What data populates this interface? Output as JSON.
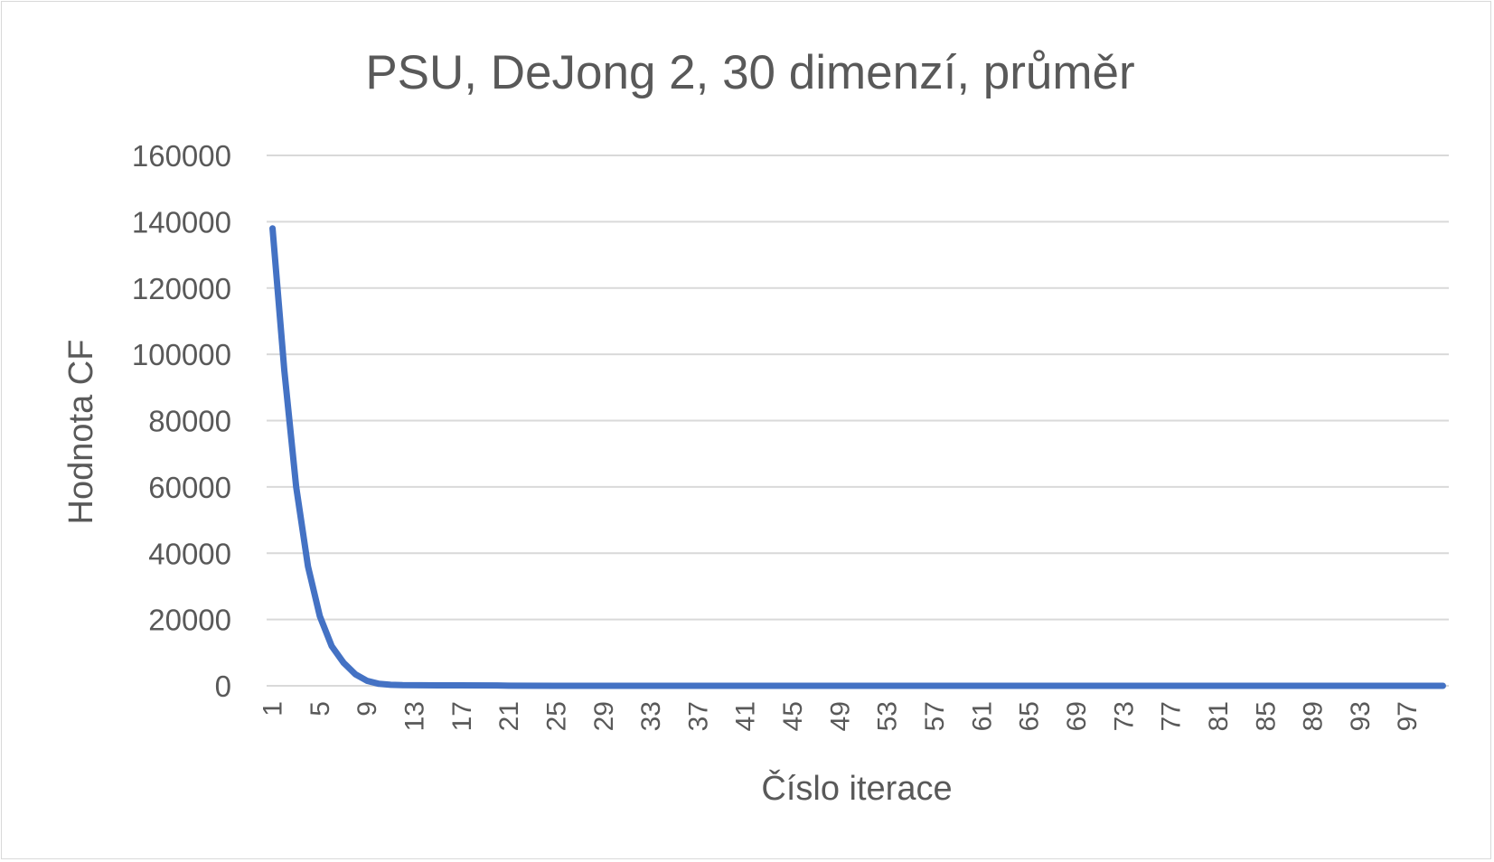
{
  "chart_data": {
    "type": "line",
    "title": "PSU, DeJong 2, 30 dimenzí, průměr",
    "xlabel": "Číslo iterace",
    "ylabel": "Hodnota CF",
    "ylim": [
      0,
      160000
    ],
    "yticks": [
      "0",
      "20000",
      "40000",
      "60000",
      "80000",
      "100000",
      "120000",
      "140000",
      "160000"
    ],
    "xticks": [
      "1",
      "5",
      "9",
      "13",
      "17",
      "21",
      "25",
      "29",
      "33",
      "37",
      "41",
      "45",
      "49",
      "53",
      "57",
      "61",
      "65",
      "69",
      "73",
      "77",
      "81",
      "85",
      "89",
      "93",
      "97"
    ],
    "x_count": 100,
    "grid": true,
    "legend": "none",
    "series": [
      {
        "color": "#4472c4",
        "x": [
          1,
          2,
          3,
          4,
          5,
          6,
          7,
          8,
          9,
          10,
          11,
          12,
          15,
          20,
          21,
          25,
          50,
          100
        ],
        "values": [
          138000,
          95000,
          60000,
          36000,
          21000,
          12000,
          7000,
          3500,
          1500,
          600,
          300,
          200,
          150,
          100,
          30,
          10,
          5,
          5
        ]
      }
    ]
  }
}
